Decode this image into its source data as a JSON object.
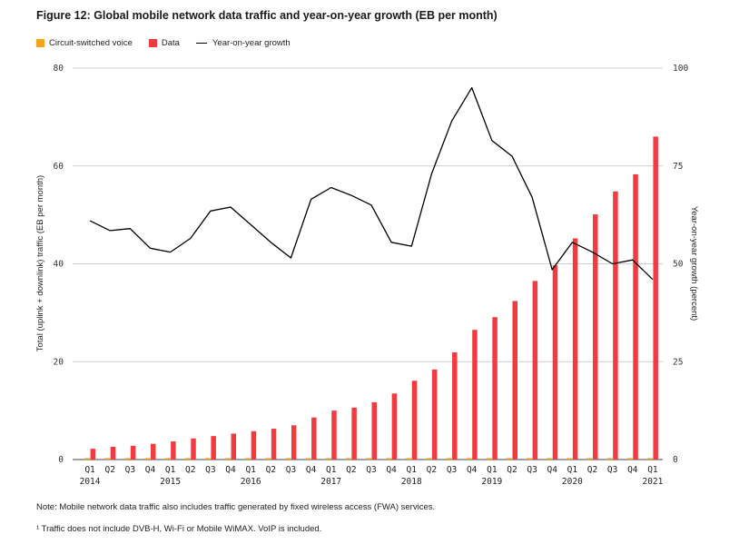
{
  "title": "Figure 12: Global mobile network data traffic and year-on-year growth (EB per month)",
  "legend": {
    "voice": "Circuit-switched voice",
    "data": "Data",
    "growth": "Year-on-year growth"
  },
  "colors": {
    "voice": "#f5a31a",
    "data": "#f23a3f",
    "growth": "#000000",
    "grid": "#bfbfbf"
  },
  "notes": {
    "note1": "Note: Mobile network data traffic also includes traffic generated by fixed wireless access (FWA) services.",
    "note2": "¹ Traffic does not include DVB-H, Wi-Fi or Mobile WiMAX. VoIP is included."
  },
  "chart_data": {
    "type": "bar",
    "categories": [
      "Q1",
      "Q2",
      "Q3",
      "Q4",
      "Q1",
      "Q2",
      "Q3",
      "Q4",
      "Q1",
      "Q2",
      "Q3",
      "Q4",
      "Q1",
      "Q2",
      "Q3",
      "Q4",
      "Q1",
      "Q2",
      "Q3",
      "Q4",
      "Q1",
      "Q2",
      "Q3",
      "Q4",
      "Q1",
      "Q2",
      "Q3",
      "Q4",
      "Q1"
    ],
    "years": [
      {
        "label": "2014",
        "index": 0
      },
      {
        "label": "2015",
        "index": 4
      },
      {
        "label": "2016",
        "index": 8
      },
      {
        "label": "2017",
        "index": 12
      },
      {
        "label": "2018",
        "index": 16
      },
      {
        "label": "2019",
        "index": 20
      },
      {
        "label": "2020",
        "index": 24
      },
      {
        "label": "2021",
        "index": 28
      }
    ],
    "series": [
      {
        "name": "Circuit-switched voice",
        "axis": "left",
        "values": [
          0.3,
          0.3,
          0.3,
          0.3,
          0.3,
          0.3,
          0.3,
          0.3,
          0.3,
          0.3,
          0.3,
          0.3,
          0.3,
          0.3,
          0.3,
          0.3,
          0.3,
          0.3,
          0.3,
          0.3,
          0.3,
          0.3,
          0.3,
          0.3,
          0.3,
          0.3,
          0.3,
          0.3,
          0.3
        ]
      },
      {
        "name": "Data",
        "axis": "left",
        "values": [
          2.2,
          2.6,
          2.8,
          3.2,
          3.7,
          4.3,
          4.8,
          5.3,
          5.8,
          6.3,
          7.0,
          8.6,
          10.0,
          10.6,
          11.7,
          13.5,
          16.1,
          18.4,
          21.9,
          26.5,
          29.1,
          32.4,
          36.5,
          39.7,
          45.2,
          50.1,
          54.8,
          58.3,
          66.0
        ]
      },
      {
        "name": "Year-on-year growth",
        "axis": "right",
        "type": "line",
        "values": [
          61,
          58.5,
          59,
          54,
          53,
          56.5,
          63.5,
          64.5,
          60,
          55.5,
          51.5,
          66.5,
          69.5,
          67.5,
          65,
          55.5,
          54.5,
          73,
          86.5,
          95,
          81.5,
          77.5,
          67,
          48.5,
          55.5,
          53,
          50,
          51,
          46
        ]
      }
    ],
    "y_left": {
      "label": "Total (uplink + downlink) traffic (EB per month)",
      "ticks": [
        0,
        20,
        40,
        60,
        80
      ],
      "ylim": [
        0,
        80
      ]
    },
    "y_right": {
      "label": "Year-on-year growth (percent)",
      "ticks": [
        0,
        25,
        50,
        75,
        100
      ],
      "ylim": [
        0,
        100
      ]
    },
    "grid": true,
    "legend_position": "top-left"
  }
}
